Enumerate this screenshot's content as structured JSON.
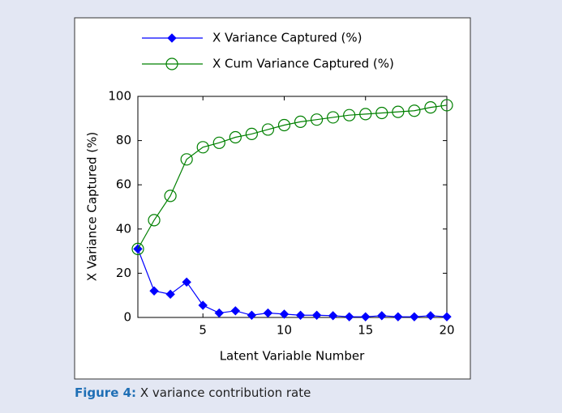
{
  "chart_data": {
    "type": "line",
    "xlabel": "Latent Variable Number",
    "ylabel": "X Variance Captured (%)",
    "x": [
      1,
      2,
      3,
      4,
      5,
      6,
      7,
      8,
      9,
      10,
      11,
      12,
      13,
      14,
      15,
      16,
      17,
      18,
      19,
      20
    ],
    "series": [
      {
        "name": "X Variance Captured (%)",
        "color": "#0000ff",
        "marker": "diamond",
        "values": [
          31,
          12,
          10.5,
          16,
          5.5,
          2,
          3,
          1,
          2,
          1.5,
          1,
          1,
          0.8,
          0.3,
          0.3,
          0.8,
          0.3,
          0.3,
          0.8,
          0.3
        ]
      },
      {
        "name": "X Cum Variance Captured (%)",
        "color": "#008000",
        "marker": "circle",
        "values": [
          31,
          44,
          55,
          71.5,
          77,
          79,
          81.5,
          83,
          85,
          87,
          88.5,
          89.5,
          90.5,
          91.5,
          92,
          92.5,
          93,
          93.5,
          95,
          96
        ]
      }
    ],
    "xlim": [
      1,
      20
    ],
    "xticks": [
      5,
      10,
      15,
      20
    ],
    "ylim": [
      0,
      100
    ],
    "yticks": [
      0,
      20,
      40,
      60,
      80,
      100
    ]
  },
  "caption": {
    "label": "Figure 4:",
    "text": "X variance contribution rate"
  }
}
